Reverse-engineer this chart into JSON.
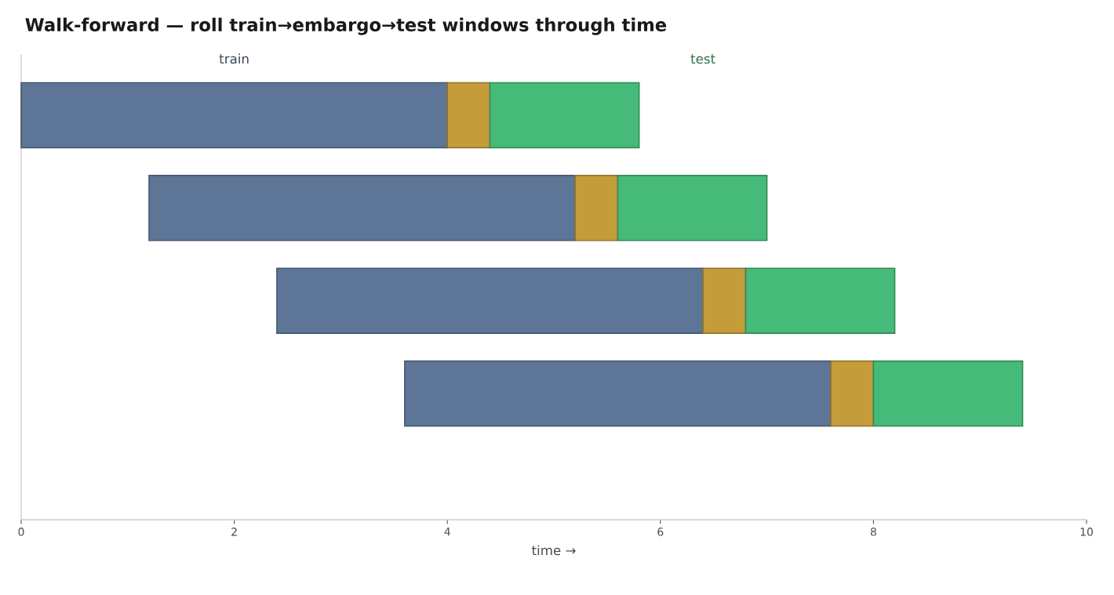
{
  "chart_data": {
    "type": "bar",
    "orientation": "horizontal",
    "title": "Walk-forward — roll train→embargo→test windows through time",
    "xlabel": "time →",
    "categories": [
      null,
      null,
      null,
      null,
      null
    ],
    "series": [
      {
        "name": "train",
        "color": "#5d7697",
        "base": [
          0,
          1.2,
          2.4,
          3.6,
          null
        ],
        "values": [
          4,
          4,
          4,
          4,
          null
        ]
      },
      {
        "color": "#c49c3a",
        "base": [
          4,
          5.2,
          6.4,
          7.6,
          null
        ],
        "values": [
          0.4,
          0.4,
          0.4,
          0.4,
          null
        ]
      },
      {
        "name": "test",
        "color": "#46ba78",
        "base": [
          4.4,
          5.6,
          6.8,
          8,
          null
        ],
        "values": [
          1.4,
          1.4,
          1.4,
          1.4,
          null
        ]
      }
    ],
    "xlim": [
      0,
      10
    ],
    "xticks": [
      0,
      2,
      4,
      6,
      8,
      10
    ],
    "legend": "top",
    "grid": false
  }
}
